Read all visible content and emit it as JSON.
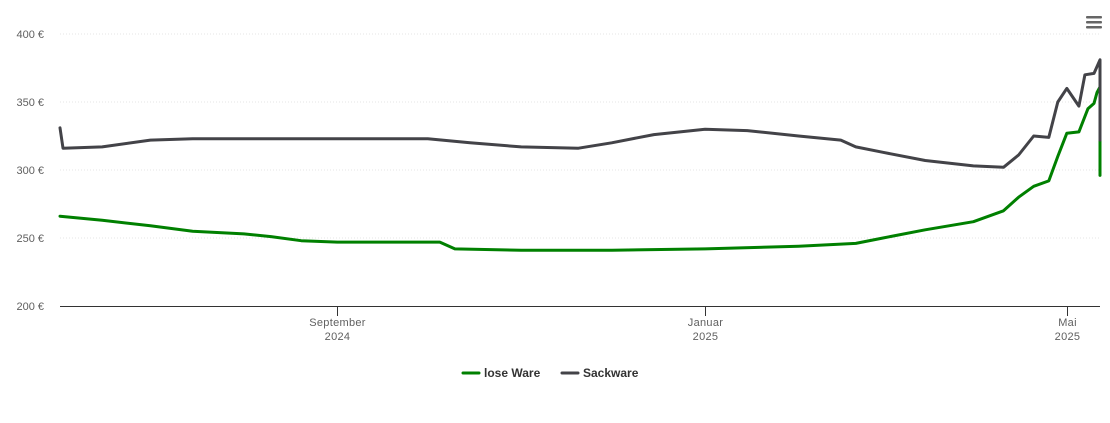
{
  "chart_data": {
    "type": "line",
    "title": "",
    "xlabel": "",
    "ylabel": "",
    "ylim": [
      200,
      400
    ],
    "yticks": [
      {
        "value": 200,
        "label": "200 €"
      },
      {
        "value": 250,
        "label": "250 €"
      },
      {
        "value": 300,
        "label": "300 €"
      },
      {
        "value": 350,
        "label": "350 €"
      },
      {
        "value": 400,
        "label": "400 €"
      }
    ],
    "xlim": [
      "2024-06-01",
      "2025-05-12"
    ],
    "xticks": [
      {
        "date": "2024-09-01",
        "month": "September",
        "year": "2024"
      },
      {
        "date": "2025-01-01",
        "month": "Januar",
        "year": "2025"
      },
      {
        "date": "2025-05-01",
        "month": "Mai",
        "year": "2025"
      }
    ],
    "grid": true,
    "legend_position": "bottom-center",
    "series": [
      {
        "name": "lose Ware",
        "color": "#008000",
        "points": [
          [
            "2024-06-01",
            266
          ],
          [
            "2024-06-15",
            263
          ],
          [
            "2024-07-01",
            259
          ],
          [
            "2024-07-15",
            255
          ],
          [
            "2024-08-01",
            253
          ],
          [
            "2024-08-10",
            251
          ],
          [
            "2024-08-20",
            248
          ],
          [
            "2024-09-01",
            247
          ],
          [
            "2024-10-01",
            247
          ],
          [
            "2024-10-05",
            247
          ],
          [
            "2024-10-10",
            242
          ],
          [
            "2024-11-01",
            241
          ],
          [
            "2024-12-01",
            241
          ],
          [
            "2025-01-01",
            242
          ],
          [
            "2025-02-01",
            244
          ],
          [
            "2025-02-20",
            246
          ],
          [
            "2025-03-01",
            250
          ],
          [
            "2025-03-15",
            256
          ],
          [
            "2025-03-31",
            262
          ],
          [
            "2025-04-10",
            270
          ],
          [
            "2025-04-15",
            280
          ],
          [
            "2025-04-20",
            288
          ],
          [
            "2025-04-25",
            292
          ],
          [
            "2025-04-28",
            310
          ],
          [
            "2025-05-01",
            327
          ],
          [
            "2025-05-05",
            328
          ],
          [
            "2025-05-08",
            345
          ],
          [
            "2025-05-10",
            349
          ],
          [
            "2025-05-11",
            357
          ],
          [
            "2025-05-12",
            361
          ],
          [
            "2025-05-12",
            361
          ],
          [
            "2025-05-12",
            359
          ],
          [
            "2025-05-12",
            350
          ],
          [
            "2025-05-12",
            339
          ],
          [
            "2025-05-12",
            328
          ],
          [
            "2025-05-12",
            326
          ],
          [
            "2025-05-12",
            318
          ],
          [
            "2025-05-12",
            316
          ],
          [
            "2025-05-12",
            296
          ],
          [
            "2025-05-12",
            299
          ],
          [
            "2025-05-12",
            296
          ]
        ]
      },
      {
        "name": "Sackware",
        "color": "#434348",
        "points": [
          [
            "2024-06-01",
            331
          ],
          [
            "2024-06-02",
            316
          ],
          [
            "2024-06-15",
            317
          ],
          [
            "2024-07-01",
            322
          ],
          [
            "2024-07-15",
            323
          ],
          [
            "2024-09-01",
            323
          ],
          [
            "2024-10-01",
            323
          ],
          [
            "2024-10-15",
            320
          ],
          [
            "2024-11-01",
            317
          ],
          [
            "2024-11-20",
            316
          ],
          [
            "2024-12-01",
            320
          ],
          [
            "2024-12-15",
            326
          ],
          [
            "2025-01-01",
            330
          ],
          [
            "2025-01-15",
            329
          ],
          [
            "2025-02-01",
            325
          ],
          [
            "2025-02-15",
            322
          ],
          [
            "2025-02-20",
            317
          ],
          [
            "2025-03-01",
            313
          ],
          [
            "2025-03-15",
            307
          ],
          [
            "2025-03-31",
            303
          ],
          [
            "2025-04-10",
            302
          ],
          [
            "2025-04-15",
            311
          ],
          [
            "2025-04-20",
            325
          ],
          [
            "2025-04-25",
            324
          ],
          [
            "2025-04-28",
            350
          ],
          [
            "2025-05-01",
            360
          ],
          [
            "2025-05-05",
            347
          ],
          [
            "2025-05-07",
            370
          ],
          [
            "2025-05-10",
            371
          ],
          [
            "2025-05-11",
            376
          ],
          [
            "2025-05-12",
            381
          ],
          [
            "2025-05-12",
            368
          ],
          [
            "2025-05-12",
            365
          ],
          [
            "2025-05-12",
            351
          ],
          [
            "2025-05-12",
            345
          ],
          [
            "2025-05-12",
            344
          ],
          [
            "2025-05-12",
            340
          ],
          [
            "2025-05-12",
            322
          ]
        ]
      }
    ]
  },
  "ui": {
    "menu_icon": "hamburger-menu-icon",
    "grid_color": "#e6e6e6",
    "axis_color": "#333333"
  }
}
